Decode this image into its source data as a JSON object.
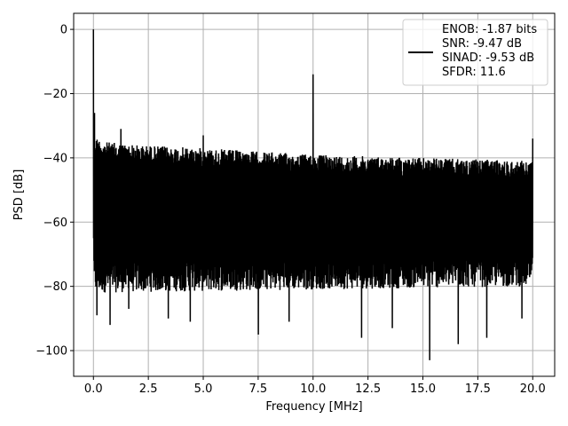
{
  "chart_data": {
    "type": "line",
    "xlabel": "Frequency [MHz]",
    "ylabel": "PSD [dB]",
    "xlim": [
      -0.9,
      21.0
    ],
    "ylim": [
      -108,
      5
    ],
    "xticks": [
      0.0,
      2.5,
      5.0,
      7.5,
      10.0,
      12.5,
      15.0,
      17.5,
      20.0
    ],
    "xtick_labels": [
      "0.0",
      "2.5",
      "5.0",
      "7.5",
      "10.0",
      "12.5",
      "15.0",
      "17.5",
      "20.0"
    ],
    "yticks": [
      0,
      -20,
      -40,
      -60,
      -80,
      -100
    ],
    "ytick_labels": [
      "0",
      "−20",
      "−40",
      "−60",
      "−80",
      "−100"
    ],
    "grid": true,
    "legend_position": "top-right",
    "line_color": "#000000",
    "series": [
      {
        "name": "ENOB: -1.87 bits\nSNR: -9.47 dB\nSINAD: -9.53 dB\nSFDR: 11.6",
        "legend_lines": [
          "ENOB: -1.87 bits",
          "SNR: -9.47 dB",
          "SINAD: -9.53 dB",
          "SFDR: 11.6"
        ],
        "noise_floor_top": [
          [
            0.0,
            -33
          ],
          [
            0.5,
            -35
          ],
          [
            2.0,
            -36
          ],
          [
            5.0,
            -37
          ],
          [
            10.0,
            -39
          ],
          [
            15.0,
            -40
          ],
          [
            20.0,
            -41
          ]
        ],
        "noise_floor_bottom": [
          [
            0.0,
            -79
          ],
          [
            10.0,
            -78
          ],
          [
            20.0,
            -77
          ]
        ],
        "peaks": [
          {
            "x": 0.0,
            "y": 0
          },
          {
            "x": 0.05,
            "y": -26
          },
          {
            "x": 1.25,
            "y": -31
          },
          {
            "x": 5.0,
            "y": -33
          },
          {
            "x": 10.0,
            "y": -14
          },
          {
            "x": 20.0,
            "y": -34
          }
        ],
        "dips": [
          {
            "x": 0.15,
            "y": -89
          },
          {
            "x": 0.75,
            "y": -92
          },
          {
            "x": 1.6,
            "y": -87
          },
          {
            "x": 3.4,
            "y": -90
          },
          {
            "x": 4.4,
            "y": -91
          },
          {
            "x": 7.5,
            "y": -95
          },
          {
            "x": 8.9,
            "y": -91
          },
          {
            "x": 12.2,
            "y": -96
          },
          {
            "x": 13.6,
            "y": -93
          },
          {
            "x": 15.3,
            "y": -103
          },
          {
            "x": 16.6,
            "y": -98
          },
          {
            "x": 17.9,
            "y": -96
          },
          {
            "x": 19.5,
            "y": -90
          }
        ]
      }
    ]
  }
}
